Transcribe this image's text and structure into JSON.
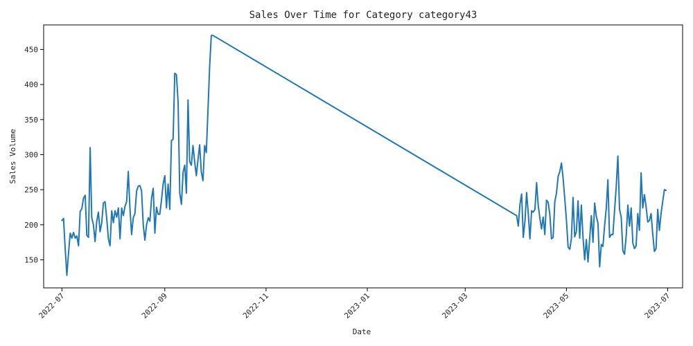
{
  "chart_data": {
    "type": "line",
    "title": "Sales Over Time for Category category43",
    "xlabel": "Date",
    "ylabel": "Sales Volume",
    "xlim": [
      "2022-06-20",
      "2023-07-10"
    ],
    "ylim": [
      110,
      485
    ],
    "x_ticks": [
      {
        "value": "2022-07-01",
        "label": "2022-07"
      },
      {
        "value": "2022-09-01",
        "label": "2022-09"
      },
      {
        "value": "2022-11-01",
        "label": "2022-11"
      },
      {
        "value": "2023-01-01",
        "label": "2023-01"
      },
      {
        "value": "2023-03-01",
        "label": "2023-03"
      },
      {
        "value": "2023-05-01",
        "label": "2023-05"
      },
      {
        "value": "2023-07-01",
        "label": "2023-07"
      }
    ],
    "y_ticks": [
      150,
      200,
      250,
      300,
      350,
      400,
      450
    ],
    "grid": false,
    "series": [
      {
        "color": "#1f77b4",
        "x": [
          "2022-07-01",
          "2022-07-02",
          "2022-07-03",
          "2022-07-04",
          "2022-07-05",
          "2022-07-06",
          "2022-07-07",
          "2022-07-08",
          "2022-07-09",
          "2022-07-10",
          "2022-07-11",
          "2022-07-12",
          "2022-07-13",
          "2022-07-14",
          "2022-07-15",
          "2022-07-16",
          "2022-07-17",
          "2022-07-18",
          "2022-07-19",
          "2022-07-20",
          "2022-07-21",
          "2022-07-22",
          "2022-07-23",
          "2022-07-24",
          "2022-07-25",
          "2022-07-26",
          "2022-07-27",
          "2022-07-28",
          "2022-07-29",
          "2022-07-30",
          "2022-07-31",
          "2022-08-01",
          "2022-08-02",
          "2022-08-03",
          "2022-08-04",
          "2022-08-05",
          "2022-08-06",
          "2022-08-07",
          "2022-08-08",
          "2022-08-09",
          "2022-08-10",
          "2022-08-11",
          "2022-08-12",
          "2022-08-13",
          "2022-08-14",
          "2022-08-15",
          "2022-08-16",
          "2022-08-17",
          "2022-08-18",
          "2022-08-19",
          "2022-08-20",
          "2022-08-21",
          "2022-08-22",
          "2022-08-23",
          "2022-08-24",
          "2022-08-25",
          "2022-08-26",
          "2022-08-27",
          "2022-08-28",
          "2022-08-29",
          "2022-08-30",
          "2022-08-31",
          "2022-09-01",
          "2022-09-02",
          "2022-09-03",
          "2022-09-04",
          "2022-09-05",
          "2022-09-06",
          "2022-09-07",
          "2022-09-08",
          "2022-09-09",
          "2022-09-10",
          "2022-09-11",
          "2022-09-12",
          "2022-09-13",
          "2022-09-14",
          "2022-09-15",
          "2022-09-16",
          "2022-09-17",
          "2022-09-18",
          "2022-09-19",
          "2022-09-20",
          "2022-09-21",
          "2022-09-22",
          "2022-09-23",
          "2022-09-24",
          "2022-09-25",
          "2022-09-26",
          "2022-09-27",
          "2022-09-28",
          "2022-09-29",
          "2022-09-30",
          "2023-04-01",
          "2023-04-02",
          "2023-04-03",
          "2023-04-04",
          "2023-04-05",
          "2023-04-06",
          "2023-04-07",
          "2023-04-08",
          "2023-04-09",
          "2023-04-10",
          "2023-04-11",
          "2023-04-12",
          "2023-04-13",
          "2023-04-14",
          "2023-04-15",
          "2023-04-16",
          "2023-04-17",
          "2023-04-18",
          "2023-04-19",
          "2023-04-20",
          "2023-04-21",
          "2023-04-22",
          "2023-04-23",
          "2023-04-24",
          "2023-04-25",
          "2023-04-26",
          "2023-04-27",
          "2023-04-28",
          "2023-04-29",
          "2023-04-30",
          "2023-05-01",
          "2023-05-02",
          "2023-05-03",
          "2023-05-04",
          "2023-05-05",
          "2023-05-06",
          "2023-05-07",
          "2023-05-08",
          "2023-05-09",
          "2023-05-10",
          "2023-05-11",
          "2023-05-12",
          "2023-05-13",
          "2023-05-14",
          "2023-05-15",
          "2023-05-16",
          "2023-05-17",
          "2023-05-18",
          "2023-05-19",
          "2023-05-20",
          "2023-05-21",
          "2023-05-22",
          "2023-05-23",
          "2023-05-24",
          "2023-05-25",
          "2023-05-26",
          "2023-05-27",
          "2023-05-28",
          "2023-05-29",
          "2023-05-30",
          "2023-05-31",
          "2023-06-01",
          "2023-06-02",
          "2023-06-03",
          "2023-06-04",
          "2023-06-05",
          "2023-06-06",
          "2023-06-07",
          "2023-06-08",
          "2023-06-09",
          "2023-06-10",
          "2023-06-11",
          "2023-06-12",
          "2023-06-13",
          "2023-06-14",
          "2023-06-15",
          "2023-06-16",
          "2023-06-17",
          "2023-06-18",
          "2023-06-19",
          "2023-06-20",
          "2023-06-21",
          "2023-06-22",
          "2023-06-23",
          "2023-06-24",
          "2023-06-25",
          "2023-06-26",
          "2023-06-27",
          "2023-06-28",
          "2023-06-29",
          "2023-06-30"
        ],
        "y": [
          206,
          209,
          165,
          128,
          160,
          188,
          181,
          189,
          181,
          184,
          170,
          219,
          223,
          238,
          242,
          185,
          182,
          310,
          210,
          200,
          176,
          205,
          218,
          190,
          203,
          231,
          233,
          209,
          180,
          170,
          220,
          203,
          220,
          211,
          224,
          180,
          224,
          213,
          226,
          233,
          276,
          224,
          186,
          210,
          216,
          248,
          255,
          256,
          248,
          200,
          178,
          200,
          210,
          205,
          238,
          252,
          188,
          225,
          215,
          215,
          235,
          258,
          270,
          224,
          258,
          222,
          320,
          322,
          416,
          414,
          375,
          245,
          229,
          275,
          285,
          245,
          378,
          290,
          285,
          313,
          290,
          270,
          293,
          314,
          275,
          263,
          313,
          303,
          363,
          425,
          470,
          470,
          213,
          198,
          229,
          244,
          182,
          205,
          246,
          216,
          180,
          220,
          218,
          222,
          260,
          227,
          210,
          194,
          211,
          186,
          235,
          232,
          215,
          180,
          182,
          233,
          245,
          269,
          276,
          288,
          266,
          237,
          206,
          168,
          165,
          180,
          239,
          183,
          190,
          234,
          181,
          228,
          182,
          150,
          179,
          147,
          180,
          213,
          175,
          231,
          212,
          202,
          140,
          172,
          169,
          198,
          223,
          264,
          182,
          186,
          186,
          220,
          254,
          298,
          222,
          211,
          163,
          158,
          184,
          228,
          198,
          224,
          174,
          166,
          170,
          216,
          192,
          274,
          224,
          243,
          226,
          204,
          206,
          216,
          187,
          162,
          166,
          222,
          192,
          216,
          233,
          250,
          249
        ]
      }
    ]
  }
}
